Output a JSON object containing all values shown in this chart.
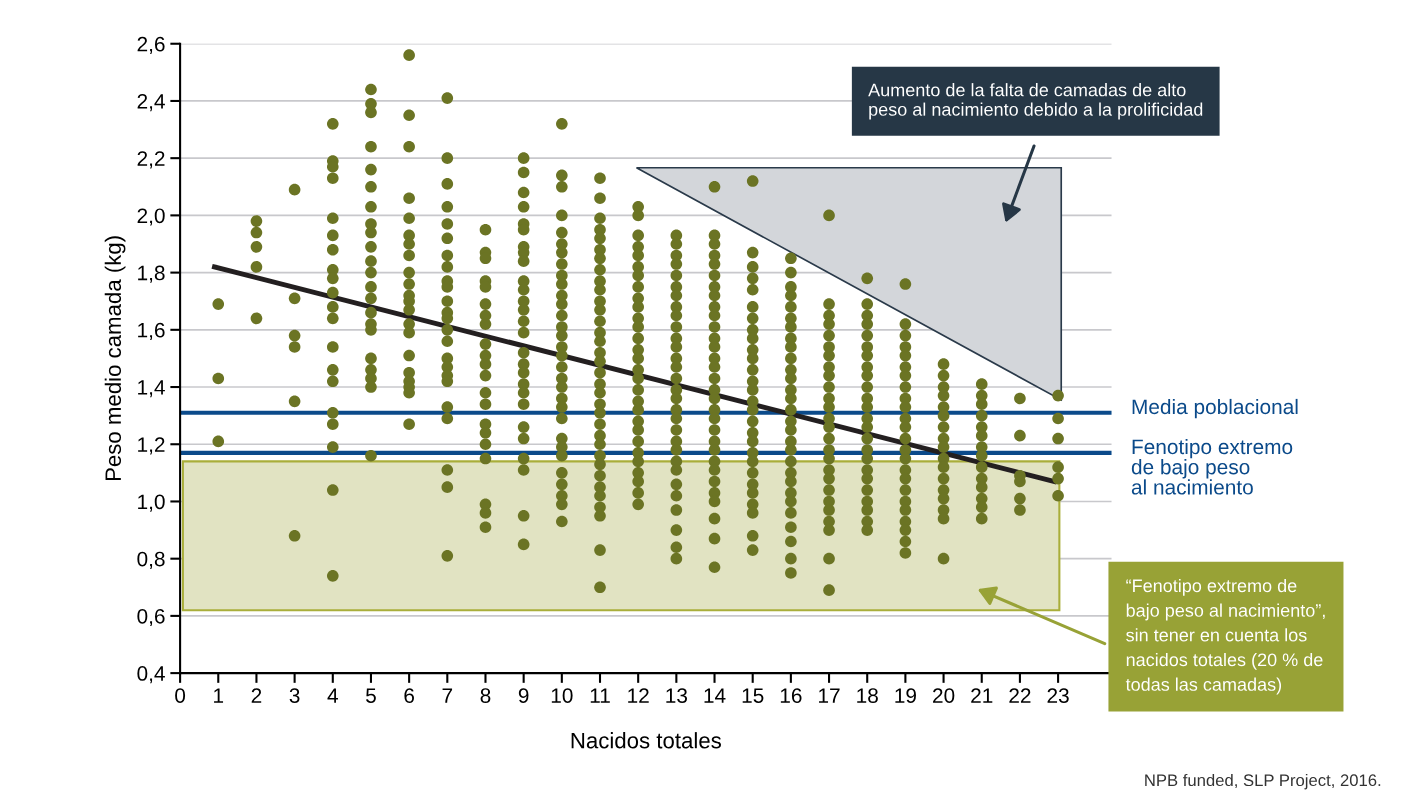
{
  "chart_data": {
    "type": "scatter",
    "xlabel": "Nacidos totales",
    "ylabel": "Peso medio camada (kg)",
    "xlim": [
      0,
      24.4
    ],
    "xticks": [
      0,
      1,
      2,
      3,
      4,
      5,
      6,
      7,
      8,
      9,
      10,
      11,
      12,
      13,
      14,
      15,
      16,
      17,
      18,
      19,
      20,
      21,
      22,
      23
    ],
    "ylim": [
      0.4,
      2.6
    ],
    "yticks": [
      {
        "value": 0.4,
        "label": "0,4"
      },
      {
        "value": 0.6,
        "label": "0,6"
      },
      {
        "value": 0.8,
        "label": "0,8"
      },
      {
        "value": 1.0,
        "label": "1,0"
      },
      {
        "value": 1.2,
        "label": "1,2"
      },
      {
        "value": 1.4,
        "label": "1,4"
      },
      {
        "value": 1.6,
        "label": "1,6"
      },
      {
        "value": 1.8,
        "label": "1,8"
      },
      {
        "value": 2.0,
        "label": "2,0"
      },
      {
        "value": 2.2,
        "label": "2,2"
      },
      {
        "value": 2.4,
        "label": "2,4"
      },
      {
        "value": 2.6,
        "label": "2,6"
      }
    ],
    "grid": "y",
    "marker": "circle",
    "series": [
      {
        "type": "scatter",
        "color": "#6b7424",
        "x": [
          1,
          1,
          1
        ],
        "values": [
          1.69,
          1.43,
          1.21
        ]
      },
      {
        "type": "scatter",
        "color": "#6b7424",
        "x": [
          2,
          2,
          2,
          2,
          2
        ],
        "values": [
          1.98,
          1.94,
          1.89,
          1.82,
          1.64
        ]
      },
      {
        "type": "scatter",
        "color": "#6b7424",
        "x": [
          3,
          3,
          3,
          3,
          3,
          3
        ],
        "values": [
          2.09,
          1.71,
          1.58,
          1.54,
          1.35,
          0.88
        ]
      },
      {
        "type": "scatter",
        "color": "#6b7424",
        "x": [
          4,
          4,
          4,
          4,
          4,
          4,
          4,
          4,
          4,
          4,
          4,
          4,
          4,
          4,
          4,
          4,
          4,
          4,
          4,
          4
        ],
        "values": [
          2.32,
          2.19,
          2.17,
          2.13,
          1.99,
          1.93,
          1.88,
          1.81,
          1.78,
          1.73,
          1.68,
          1.64,
          1.54,
          1.46,
          1.42,
          1.31,
          1.27,
          1.19,
          1.04,
          0.74
        ]
      },
      {
        "type": "scatter",
        "color": "#6b7424",
        "x": [
          5,
          5,
          5,
          5,
          5,
          5,
          5,
          5,
          5,
          5,
          5,
          5,
          5,
          5,
          5,
          5,
          5,
          5,
          5,
          5,
          5,
          5
        ],
        "values": [
          2.44,
          2.39,
          2.36,
          2.24,
          2.16,
          2.1,
          2.03,
          1.97,
          1.94,
          1.89,
          1.84,
          1.8,
          1.75,
          1.71,
          1.66,
          1.62,
          1.6,
          1.5,
          1.46,
          1.43,
          1.4,
          1.16
        ]
      },
      {
        "type": "scatter",
        "color": "#6b7424",
        "x": [
          6,
          6,
          6,
          6,
          6,
          6,
          6,
          6,
          6,
          6,
          6,
          6,
          6,
          6,
          6,
          6,
          6,
          6,
          6,
          6,
          6
        ],
        "values": [
          2.56,
          2.35,
          2.24,
          2.06,
          1.99,
          1.93,
          1.9,
          1.86,
          1.8,
          1.76,
          1.72,
          1.7,
          1.67,
          1.62,
          1.59,
          1.51,
          1.45,
          1.42,
          1.4,
          1.38,
          1.27
        ]
      },
      {
        "type": "scatter",
        "color": "#6b7424",
        "x": [
          7,
          7,
          7,
          7,
          7,
          7,
          7,
          7,
          7,
          7,
          7,
          7,
          7,
          7,
          7,
          7,
          7,
          7,
          7,
          7,
          7,
          7,
          7,
          7
        ],
        "values": [
          2.41,
          2.2,
          2.11,
          2.03,
          1.97,
          1.92,
          1.86,
          1.82,
          1.77,
          1.75,
          1.7,
          1.66,
          1.64,
          1.6,
          1.56,
          1.5,
          1.47,
          1.44,
          1.42,
          1.33,
          1.29,
          1.11,
          1.05,
          0.81
        ]
      },
      {
        "type": "scatter",
        "color": "#6b7424",
        "x": [
          8,
          8,
          8,
          8,
          8,
          8,
          8,
          8,
          8,
          8,
          8,
          8,
          8,
          8,
          8,
          8,
          8,
          8,
          8,
          8,
          8
        ],
        "values": [
          1.95,
          1.87,
          1.85,
          1.77,
          1.75,
          1.69,
          1.65,
          1.62,
          1.55,
          1.51,
          1.48,
          1.44,
          1.38,
          1.34,
          1.27,
          1.24,
          1.2,
          1.15,
          0.99,
          0.96,
          0.91
        ]
      },
      {
        "type": "scatter",
        "color": "#6b7424",
        "x": [
          9,
          9,
          9,
          9,
          9,
          9,
          9,
          9,
          9,
          9,
          9,
          9,
          9,
          9,
          9,
          9,
          9,
          9,
          9,
          9,
          9,
          9,
          9,
          9,
          9,
          9,
          9
        ],
        "values": [
          2.2,
          2.15,
          2.08,
          2.03,
          1.97,
          1.95,
          1.89,
          1.87,
          1.84,
          1.77,
          1.74,
          1.7,
          1.67,
          1.63,
          1.59,
          1.52,
          1.48,
          1.45,
          1.41,
          1.38,
          1.34,
          1.26,
          1.22,
          1.15,
          1.11,
          0.95,
          0.85
        ]
      },
      {
        "type": "scatter",
        "color": "#6b7424",
        "x": [
          10,
          10,
          10,
          10,
          10,
          10,
          10,
          10,
          10,
          10,
          10,
          10,
          10,
          10,
          10,
          10,
          10,
          10,
          10,
          10,
          10,
          10,
          10,
          10,
          10,
          10,
          10,
          10,
          10,
          10,
          10
        ],
        "values": [
          2.32,
          2.14,
          2.1,
          2.0,
          1.94,
          1.9,
          1.87,
          1.83,
          1.79,
          1.76,
          1.72,
          1.69,
          1.65,
          1.61,
          1.58,
          1.54,
          1.51,
          1.47,
          1.43,
          1.4,
          1.36,
          1.33,
          1.29,
          1.22,
          1.19,
          1.16,
          1.1,
          1.06,
          1.02,
          0.99,
          0.93
        ]
      },
      {
        "type": "scatter",
        "color": "#6b7424",
        "x": [
          11,
          11,
          11,
          11,
          11,
          11,
          11,
          11,
          11,
          11,
          11,
          11,
          11,
          11,
          11,
          11,
          11,
          11,
          11,
          11,
          11,
          11,
          11,
          11,
          11,
          11,
          11,
          11,
          11,
          11,
          11,
          11,
          11,
          11
        ],
        "values": [
          2.13,
          2.06,
          1.99,
          1.95,
          1.92,
          1.88,
          1.85,
          1.81,
          1.77,
          1.74,
          1.7,
          1.67,
          1.63,
          1.59,
          1.56,
          1.52,
          1.49,
          1.45,
          1.41,
          1.38,
          1.34,
          1.31,
          1.27,
          1.23,
          1.2,
          1.16,
          1.13,
          1.09,
          1.05,
          1.02,
          0.98,
          0.95,
          0.83,
          0.7
        ]
      },
      {
        "type": "scatter",
        "color": "#6b7424",
        "x": [
          12,
          12,
          12,
          12,
          12,
          12,
          12,
          12,
          12,
          12,
          12,
          12,
          12,
          12,
          12,
          12,
          12,
          12,
          12,
          12,
          12,
          12,
          12,
          12,
          12,
          12,
          12,
          12,
          12
        ],
        "values": [
          2.03,
          2.0,
          1.93,
          1.89,
          1.86,
          1.82,
          1.79,
          1.75,
          1.71,
          1.68,
          1.64,
          1.61,
          1.57,
          1.53,
          1.5,
          1.46,
          1.43,
          1.39,
          1.35,
          1.32,
          1.28,
          1.25,
          1.21,
          1.17,
          1.14,
          1.1,
          1.07,
          1.03,
          0.99
        ]
      },
      {
        "type": "scatter",
        "color": "#6b7424",
        "x": [
          13,
          13,
          13,
          13,
          13,
          13,
          13,
          13,
          13,
          13,
          13,
          13,
          13,
          13,
          13,
          13,
          13,
          13,
          13,
          13,
          13,
          13,
          13,
          13,
          13,
          13,
          13,
          13,
          13,
          13
        ],
        "values": [
          1.93,
          1.9,
          1.86,
          1.83,
          1.79,
          1.75,
          1.72,
          1.68,
          1.65,
          1.61,
          1.57,
          1.54,
          1.5,
          1.47,
          1.43,
          1.39,
          1.36,
          1.32,
          1.29,
          1.25,
          1.21,
          1.18,
          1.14,
          1.11,
          1.06,
          1.02,
          0.97,
          0.9,
          0.84,
          0.8
        ]
      },
      {
        "type": "scatter",
        "color": "#6b7424",
        "x": [
          14,
          14,
          14,
          14,
          14,
          14,
          14,
          14,
          14,
          14,
          14,
          14,
          14,
          14,
          14,
          14,
          14,
          14,
          14,
          14,
          14,
          14,
          14,
          14,
          14,
          14,
          14,
          14,
          14,
          14,
          14
        ],
        "values": [
          2.1,
          1.93,
          1.9,
          1.86,
          1.83,
          1.79,
          1.75,
          1.72,
          1.68,
          1.65,
          1.61,
          1.57,
          1.54,
          1.5,
          1.47,
          1.43,
          1.39,
          1.36,
          1.32,
          1.29,
          1.25,
          1.21,
          1.18,
          1.14,
          1.11,
          1.07,
          1.03,
          1.0,
          0.94,
          0.87,
          0.77
        ]
      },
      {
        "type": "scatter",
        "color": "#6b7424",
        "x": [
          15,
          15,
          15,
          15,
          15,
          15,
          15,
          15,
          15,
          15,
          15,
          15,
          15,
          15,
          15,
          15,
          15,
          15,
          15,
          15,
          15,
          15,
          15,
          15,
          15,
          15,
          15,
          15
        ],
        "values": [
          2.12,
          1.87,
          1.82,
          1.78,
          1.74,
          1.68,
          1.64,
          1.6,
          1.57,
          1.53,
          1.5,
          1.46,
          1.42,
          1.39,
          1.35,
          1.32,
          1.28,
          1.24,
          1.21,
          1.17,
          1.14,
          1.1,
          1.06,
          1.03,
          0.99,
          0.96,
          0.88,
          0.83
        ]
      },
      {
        "type": "scatter",
        "color": "#6b7424",
        "x": [
          16,
          16,
          16,
          16,
          16,
          16,
          16,
          16,
          16,
          16,
          16,
          16,
          16,
          16,
          16,
          16,
          16,
          16,
          16,
          16,
          16,
          16,
          16,
          16,
          16,
          16,
          16,
          16,
          16
        ],
        "values": [
          1.85,
          1.8,
          1.75,
          1.72,
          1.68,
          1.64,
          1.61,
          1.57,
          1.54,
          1.5,
          1.46,
          1.43,
          1.39,
          1.36,
          1.32,
          1.28,
          1.25,
          1.21,
          1.18,
          1.14,
          1.1,
          1.07,
          1.03,
          1.0,
          0.96,
          0.91,
          0.86,
          0.8,
          0.75
        ]
      },
      {
        "type": "scatter",
        "color": "#6b7424",
        "x": [
          17,
          17,
          17,
          17,
          17,
          17,
          17,
          17,
          17,
          17,
          17,
          17,
          17,
          17,
          17,
          17,
          17,
          17,
          17,
          17,
          17,
          17,
          17,
          17,
          17,
          17
        ],
        "values": [
          2.0,
          1.69,
          1.65,
          1.62,
          1.58,
          1.54,
          1.51,
          1.47,
          1.44,
          1.4,
          1.36,
          1.33,
          1.29,
          1.26,
          1.22,
          1.18,
          1.15,
          1.11,
          1.08,
          1.04,
          1.0,
          0.97,
          0.93,
          0.9,
          0.8,
          0.69
        ]
      },
      {
        "type": "scatter",
        "color": "#6b7424",
        "x": [
          18,
          18,
          18,
          18,
          18,
          18,
          18,
          18,
          18,
          18,
          18,
          18,
          18,
          18,
          18,
          18,
          18,
          18,
          18,
          18,
          18,
          18,
          18,
          18
        ],
        "values": [
          1.78,
          1.69,
          1.65,
          1.62,
          1.58,
          1.54,
          1.51,
          1.47,
          1.44,
          1.4,
          1.36,
          1.33,
          1.29,
          1.26,
          1.22,
          1.18,
          1.15,
          1.11,
          1.08,
          1.04,
          1.0,
          0.97,
          0.93,
          0.9
        ]
      },
      {
        "type": "scatter",
        "color": "#6b7424",
        "x": [
          19,
          19,
          19,
          19,
          19,
          19,
          19,
          19,
          19,
          19,
          19,
          19,
          19,
          19,
          19,
          19,
          19,
          19,
          19,
          19,
          19,
          19,
          19,
          19
        ],
        "values": [
          1.76,
          1.62,
          1.58,
          1.54,
          1.51,
          1.47,
          1.44,
          1.4,
          1.36,
          1.33,
          1.29,
          1.26,
          1.22,
          1.18,
          1.15,
          1.11,
          1.08,
          1.04,
          1.0,
          0.97,
          0.93,
          0.9,
          0.86,
          0.82
        ]
      },
      {
        "type": "scatter",
        "color": "#6b7424",
        "x": [
          20,
          20,
          20,
          20,
          20,
          20,
          20,
          20,
          20,
          20,
          20,
          20,
          20,
          20,
          20,
          20,
          20
        ],
        "values": [
          1.48,
          1.44,
          1.4,
          1.37,
          1.33,
          1.3,
          1.26,
          1.22,
          1.19,
          1.15,
          1.12,
          1.08,
          1.04,
          1.01,
          0.97,
          0.94,
          0.8
        ]
      },
      {
        "type": "scatter",
        "color": "#6b7424",
        "x": [
          21,
          21,
          21,
          21,
          21,
          21,
          21,
          21,
          21,
          21,
          21,
          21,
          21,
          21
        ],
        "values": [
          1.41,
          1.37,
          1.34,
          1.3,
          1.26,
          1.23,
          1.19,
          1.16,
          1.12,
          1.08,
          1.05,
          1.01,
          0.98,
          0.94
        ]
      },
      {
        "type": "scatter",
        "color": "#6b7424",
        "x": [
          22,
          22,
          22,
          22,
          22,
          22
        ],
        "values": [
          1.36,
          1.23,
          1.09,
          1.07,
          1.01,
          0.97
        ]
      },
      {
        "type": "scatter",
        "color": "#6b7424",
        "x": [
          23,
          23,
          23,
          23,
          23,
          23
        ],
        "values": [
          1.37,
          1.29,
          1.22,
          1.12,
          1.08,
          1.02
        ]
      },
      {
        "type": "line",
        "color": "#231f20",
        "marker": "none",
        "x": [
          0.9,
          22.9
        ],
        "values": [
          1.82,
          1.07
        ]
      }
    ],
    "ref_lines": [
      {
        "axis": "y",
        "value": 1.31,
        "label": "Media poblacional",
        "color": "#0b4a8a"
      },
      {
        "axis": "y",
        "value": 1.17,
        "label": "Fenotipo extremo\nde bajo peso\nal nacimiento",
        "color": "#0b4a8a"
      }
    ],
    "bands": [
      {
        "axis": "y",
        "from": 0.62,
        "to": 1.14,
        "color": "#e1e3c2"
      }
    ],
    "annotations": [
      "Aumento de la falta de camadas de alto\npeso al nacimiento debido a la prolificidad",
      "“Fenotipo extremo de\nbajo peso al nacimiento”,\nsin tener en cuenta los\nnacidos totales (20 % de\ntodas las camadas)",
      "NPB funded, SLP Project, 2016."
    ]
  }
}
